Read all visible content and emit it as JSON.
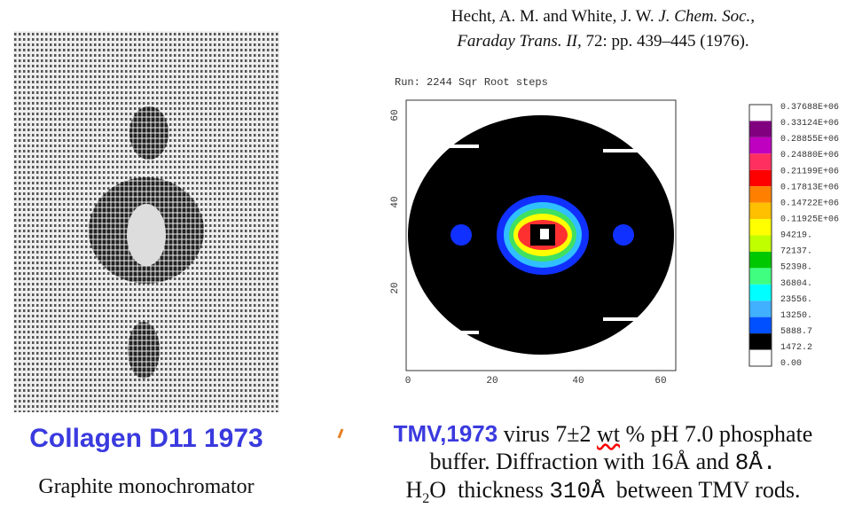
{
  "citation": {
    "line1": {
      "authors": "Hecht, A. M. and White, J. W.",
      "journal": "J. Chem. Soc.,"
    },
    "line2": {
      "journal": "Faraday Trans. II,",
      "details": "72: pp. 439–445 (1976)."
    }
  },
  "plot": {
    "run_label": "Run:  2244 Sqr Root steps",
    "y_ticks": [
      "60",
      "40",
      "20"
    ],
    "x_ticks": [
      "0",
      "20",
      "40",
      "60"
    ],
    "colorbar_labels": [
      "0.37688E+06",
      "0.33124E+06",
      "0.28855E+06",
      "0.24880E+06",
      "0.21199E+06",
      "0.17813E+06",
      "0.14722E+06",
      "0.11925E+06",
      "94219.",
      "72137.",
      "52398.",
      "36804.",
      "23556.",
      "13250.",
      "5888.7",
      "1472.2",
      "0.00"
    ]
  },
  "left": {
    "title": "Collagen D11 1973",
    "caption": "Graphite monochromator"
  },
  "description": {
    "line1": {
      "highlight": "TMV,1973",
      "text_a": "virus 7±2",
      "wt": "wt",
      "text_b": "% pH 7.0 phosphate"
    },
    "line2": {
      "text_a": "buffer. Diffraction with",
      "v1": "16Å",
      "and": "and",
      "v2": "8Å."
    },
    "line3": {
      "h": "H",
      "sub": "2",
      "o": "O",
      "thickness": "thickness",
      "value": "310Å",
      "rest": "between TMV rods."
    }
  }
}
